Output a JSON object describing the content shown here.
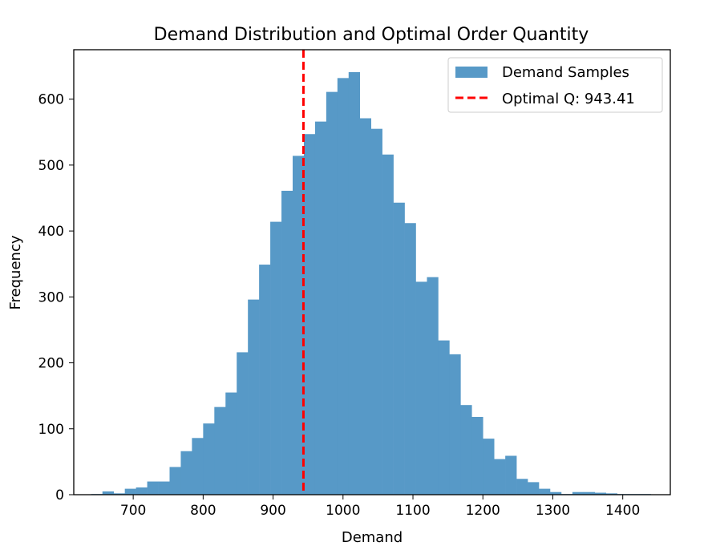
{
  "chart_data": {
    "type": "bar",
    "title": "Demand Distribution and Optimal Order Quantity",
    "xlabel": "Demand",
    "ylabel": "Frequency",
    "xlim": [
      615,
      1468
    ],
    "ylim": [
      0,
      675
    ],
    "xticks": [
      700,
      800,
      900,
      1000,
      1100,
      1200,
      1300,
      1400
    ],
    "yticks": [
      0,
      100,
      200,
      300,
      400,
      500,
      600
    ],
    "bin_edges": [
      640,
      656,
      672,
      688,
      704,
      720,
      736,
      752,
      768,
      784,
      800,
      816,
      832,
      848,
      864,
      880,
      896,
      912,
      928,
      944,
      960,
      976,
      992,
      1008,
      1024,
      1040,
      1056,
      1072,
      1088,
      1104,
      1120,
      1136,
      1152,
      1168,
      1184,
      1200,
      1216,
      1232,
      1248,
      1264,
      1280,
      1296,
      1312,
      1328,
      1344,
      1360,
      1376,
      1392,
      1408,
      1424,
      1440
    ],
    "series": [
      {
        "name": "Demand Samples",
        "color": "#5799c7",
        "values": [
          1,
          5,
          2,
          9,
          11,
          20,
          20,
          42,
          66,
          86,
          108,
          133,
          155,
          216,
          296,
          349,
          414,
          461,
          514,
          547,
          566,
          611,
          632,
          641,
          571,
          555,
          516,
          443,
          412,
          323,
          330,
          234,
          213,
          136,
          118,
          85,
          54,
          59,
          24,
          19,
          9,
          4,
          1,
          4,
          4,
          3,
          2,
          1,
          1,
          1
        ]
      }
    ],
    "vline": {
      "x": 943.41,
      "label": "Optimal Q: 943.41",
      "color": "#ff0000",
      "style": "dashed"
    },
    "legend": {
      "position": "top-right",
      "entries": [
        "Demand Samples",
        "Optimal Q: 943.41"
      ]
    },
    "grid": false
  }
}
